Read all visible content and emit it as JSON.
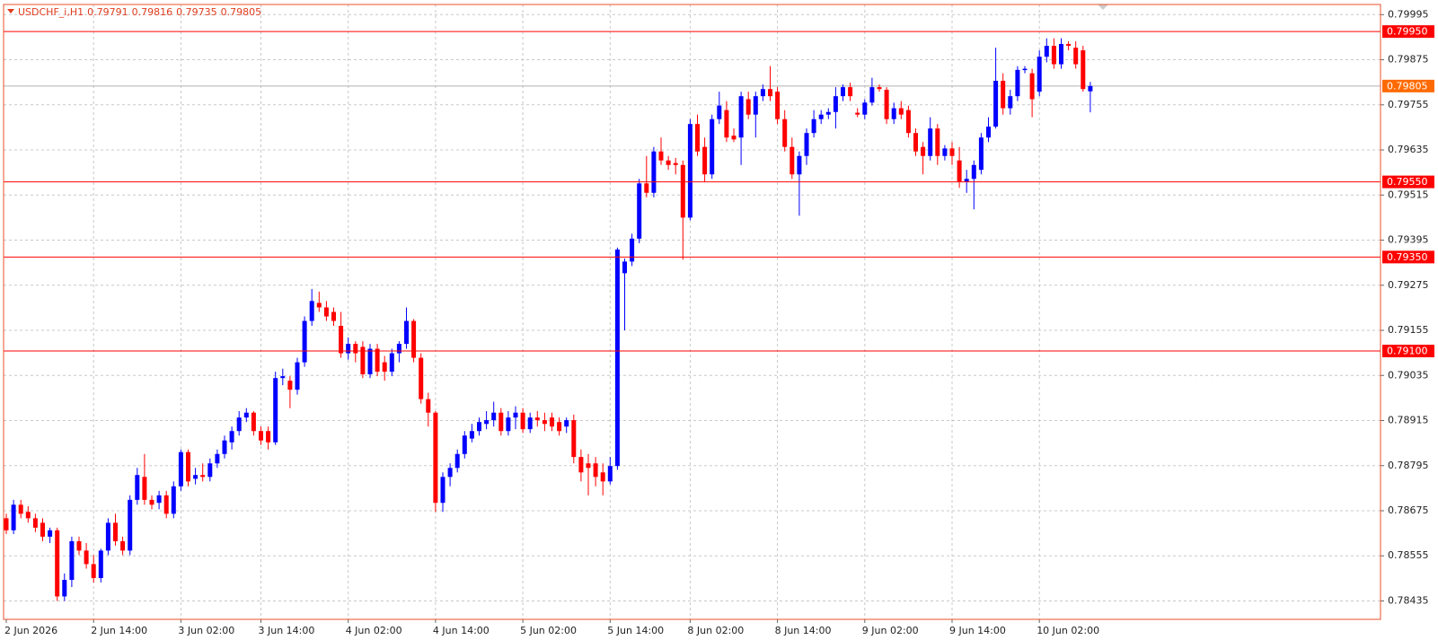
{
  "chart_data": {
    "type": "candlestick",
    "symbol": "USDCHF_i,H1",
    "categories": [
      "2 Jun 2026",
      null,
      null,
      null,
      null,
      null,
      null,
      null,
      null,
      null,
      null,
      null,
      "2 Jun 14:00",
      null,
      null,
      null,
      null,
      null,
      null,
      null,
      null,
      null,
      null,
      null,
      "3 Jun 02:00",
      null,
      null,
      null,
      null,
      null,
      null,
      null,
      null,
      null,
      null,
      "3 Jun 14:00",
      null,
      null,
      null,
      null,
      null,
      null,
      null,
      null,
      null,
      null,
      null,
      "4 Jun 02:00",
      null,
      null,
      null,
      null,
      null,
      null,
      null,
      null,
      null,
      null,
      null,
      "4 Jun 14:00",
      null,
      null,
      null,
      null,
      null,
      null,
      null,
      null,
      null,
      null,
      null,
      "5 Jun 02:00",
      null,
      null,
      null,
      null,
      null,
      null,
      null,
      null,
      null,
      null,
      null,
      "5 Jun 14:00",
      null,
      null,
      null,
      null,
      null,
      null,
      null,
      null,
      null,
      null,
      "8 Jun 02:00",
      null,
      null,
      null,
      null,
      null,
      null,
      null,
      null,
      null,
      null,
      null,
      "8 Jun 14:00",
      null,
      null,
      null,
      null,
      null,
      null,
      null,
      null,
      null,
      null,
      null,
      "9 Jun 02:00",
      null,
      null,
      null,
      null,
      null,
      null,
      null,
      null,
      null,
      null,
      null,
      "9 Jun 14:00",
      null,
      null,
      null,
      null,
      null,
      null,
      null,
      null,
      null,
      null,
      null,
      "10 Jun 02:00",
      null,
      null,
      null,
      null,
      null,
      null,
      null
    ],
    "open": [
      0.78655,
      0.78623,
      0.78691,
      0.78672,
      0.78655,
      0.78643,
      0.78606,
      0.78623,
      0.78447,
      0.78491,
      0.78594,
      0.78569,
      0.78533,
      0.78496,
      0.78569,
      0.78643,
      0.78594,
      0.78569,
      0.78704,
      0.78765,
      0.78704,
      0.78696,
      0.78716,
      0.78667,
      0.7874,
      0.78831,
      0.7876,
      0.7877,
      0.78765,
      0.78801,
      0.78826,
      0.78857,
      0.78887,
      0.78923,
      0.78936,
      0.78887,
      0.78887,
      0.78857,
      0.79028,
      0.79021,
      0.78997,
      0.7907,
      0.7918,
      0.79228,
      0.79216,
      0.79204,
      0.79167,
      0.79094,
      0.79119,
      0.79111,
      0.79038,
      0.79106,
      0.7907,
      0.79045,
      0.79094,
      0.79119,
      0.7918,
      0.79082,
      0.78972,
      0.78936,
      0.78696,
      0.78765,
      0.78789,
      0.78826,
      0.78867,
      0.78887,
      0.78906,
      0.78916,
      0.78936,
      0.78887,
      0.78923,
      0.78936,
      0.78892,
      0.78923,
      0.78916,
      0.78923,
      0.78911,
      0.78899,
      0.78916,
      0.78818,
      0.78801,
      0.78801,
      0.78777,
      0.78753,
      0.78794,
      0.79307,
      0.79338,
      0.79399,
      0.79546,
      0.79521,
      0.79631,
      0.79607,
      0.796,
      0.79595,
      0.79455,
      0.79704,
      0.79643,
      0.7957,
      0.79717,
      0.79741,
      0.79673,
      0.79668,
      0.7977,
      0.79729,
      0.79778,
      0.79797,
      0.7979,
      0.79717,
      0.79643,
      0.7957,
      0.79619,
      0.7968,
      0.79717,
      0.79729,
      0.79736,
      0.79778,
      0.79802,
      0.79734,
      0.79729,
      0.79761,
      0.79802,
      0.79795,
      0.79717,
      0.79746,
      0.79741,
      0.7968,
      0.79643,
      0.79619,
      0.79692,
      0.79619,
      0.79639,
      0.79607,
      0.79551,
      0.79558,
      0.79582,
      0.79668,
      0.79697,
      0.79819,
      0.79746,
      0.79778,
      0.79848,
      0.79839,
      0.7979,
      0.79883,
      0.79912,
      0.79863,
      0.79917,
      0.79907,
      0.799,
      0.79791
    ],
    "high": [
      0.78667,
      0.78704,
      0.78704,
      0.78687,
      0.78667,
      0.78655,
      0.7863,
      0.7863,
      0.78508,
      0.78606,
      0.78606,
      0.78589,
      0.78557,
      0.78574,
      0.78655,
      0.78667,
      0.78606,
      0.78716,
      0.78789,
      0.78826,
      0.78716,
      0.78728,
      0.78728,
      0.78753,
      0.78838,
      0.78838,
      0.78789,
      0.78801,
      0.78814,
      0.78838,
      0.78875,
      0.78899,
      0.7894,
      0.78948,
      0.7894,
      0.78899,
      0.78899,
      0.79045,
      0.79053,
      0.79033,
      0.79082,
      0.79192,
      0.79265,
      0.79258,
      0.79233,
      0.79216,
      0.79204,
      0.79136,
      0.79126,
      0.79126,
      0.79119,
      0.79119,
      0.79087,
      0.79106,
      0.79126,
      0.79216,
      0.79185,
      0.79094,
      0.78989,
      0.7894,
      0.78777,
      0.78801,
      0.78838,
      0.78887,
      0.78906,
      0.78923,
      0.7894,
      0.78965,
      0.78948,
      0.7894,
      0.78953,
      0.78948,
      0.78936,
      0.7894,
      0.78936,
      0.78936,
      0.78923,
      0.78923,
      0.78931,
      0.78838,
      0.78826,
      0.78818,
      0.78801,
      0.78818,
      0.79375,
      0.79346,
      0.79412,
      0.79558,
      0.79619,
      0.79643,
      0.79668,
      0.79619,
      0.79614,
      0.79607,
      0.79717,
      0.79729,
      0.79668,
      0.79729,
      0.7979,
      0.79765,
      0.79692,
      0.7979,
      0.7979,
      0.7979,
      0.79809,
      0.79858,
      0.79802,
      0.79741,
      0.79668,
      0.79631,
      0.79692,
      0.79741,
      0.79741,
      0.79746,
      0.79802,
      0.79809,
      0.79814,
      0.79746,
      0.7977,
      0.79827,
      0.79809,
      0.79802,
      0.79761,
      0.79765,
      0.79753,
      0.79692,
      0.79656,
      0.79722,
      0.79704,
      0.79648,
      0.79656,
      0.79643,
      0.79582,
      0.79607,
      0.7968,
      0.79722,
      0.79907,
      0.79839,
      0.79795,
      0.79858,
      0.79858,
      0.79851,
      0.799,
      0.79932,
      0.79932,
      0.79932,
      0.79924,
      0.79924,
      0.79912,
      0.79816
    ],
    "low": [
      0.78613,
      0.78613,
      0.78655,
      0.78643,
      0.78618,
      0.78594,
      0.78589,
      0.78435,
      0.78435,
      0.78472,
      0.78557,
      0.78521,
      0.78484,
      0.78484,
      0.78557,
      0.78582,
      0.78557,
      0.78557,
      0.78691,
      0.78691,
      0.78679,
      0.78679,
      0.78655,
      0.78655,
      0.78728,
      0.7874,
      0.78745,
      0.78753,
      0.78753,
      0.78789,
      0.78814,
      0.78838,
      0.78875,
      0.78911,
      0.78875,
      0.7885,
      0.78838,
      0.7885,
      0.79009,
      0.78948,
      0.78984,
      0.79058,
      0.79167,
      0.79204,
      0.7918,
      0.79167,
      0.79082,
      0.79077,
      0.7907,
      0.79028,
      0.79028,
      0.79033,
      0.79021,
      0.79033,
      0.7907,
      0.79106,
      0.7907,
      0.7896,
      0.78899,
      0.78672,
      0.78672,
      0.7874,
      0.78777,
      0.78814,
      0.78857,
      0.78875,
      0.78892,
      0.78899,
      0.78875,
      0.78875,
      0.78892,
      0.78882,
      0.78882,
      0.78899,
      0.78887,
      0.78887,
      0.78875,
      0.78882,
      0.78801,
      0.78753,
      0.78716,
      0.7874,
      0.78716,
      0.78745,
      0.78784,
      0.79155,
      0.79326,
      0.79387,
      0.79509,
      0.79509,
      0.79595,
      0.79582,
      0.7957,
      0.79343,
      0.79448,
      0.79619,
      0.79551,
      0.79558,
      0.79704,
      0.79656,
      0.79656,
      0.79595,
      0.79717,
      0.79668,
      0.79765,
      0.79765,
      0.79704,
      0.79631,
      0.79558,
      0.7946,
      0.79595,
      0.79668,
      0.79704,
      0.79717,
      0.79692,
      0.79765,
      0.79765,
      0.79722,
      0.79717,
      0.79753,
      0.7979,
      0.79704,
      0.79704,
      0.79717,
      0.79668,
      0.79619,
      0.7957,
      0.79607,
      0.79595,
      0.79607,
      0.79595,
      0.79534,
      0.79521,
      0.79477,
      0.7957,
      0.79656,
      0.79692,
      0.79729,
      0.79729,
      0.79765,
      0.79839,
      0.79722,
      0.79778,
      0.79868,
      0.79851,
      0.79851,
      0.799,
      0.79851,
      0.7979,
      0.79735
    ],
    "close": [
      0.78623,
      0.78691,
      0.78667,
      0.78655,
      0.7863,
      0.78606,
      0.78623,
      0.78447,
      0.78491,
      0.78594,
      0.78569,
      0.78533,
      0.78496,
      0.78569,
      0.78643,
      0.78594,
      0.78569,
      0.78704,
      0.7877,
      0.78704,
      0.78691,
      0.78716,
      0.78667,
      0.7874,
      0.78831,
      0.78753,
      0.7877,
      0.78765,
      0.78801,
      0.78826,
      0.78862,
      0.78887,
      0.78923,
      0.78936,
      0.78887,
      0.78862,
      0.78857,
      0.79028,
      0.79033,
      0.78997,
      0.7907,
      0.7918,
      0.79233,
      0.79216,
      0.79192,
      0.7918,
      0.79094,
      0.79119,
      0.79094,
      0.79038,
      0.79106,
      0.79045,
      0.79045,
      0.79094,
      0.79119,
      0.7918,
      0.79082,
      0.78972,
      0.78936,
      0.78696,
      0.78765,
      0.78789,
      0.78826,
      0.78875,
      0.78887,
      0.78911,
      0.78916,
      0.78936,
      0.78887,
      0.78923,
      0.78936,
      0.78892,
      0.78923,
      0.78916,
      0.78906,
      0.78899,
      0.78887,
      0.78916,
      0.78818,
      0.78777,
      0.78789,
      0.78765,
      0.78753,
      0.78794,
      0.7937,
      0.79338,
      0.79399,
      0.79546,
      0.79521,
      0.79631,
      0.79607,
      0.79595,
      0.79595,
      0.79455,
      0.79704,
      0.79631,
      0.7957,
      0.79717,
      0.79753,
      0.79668,
      0.79663,
      0.79778,
      0.79729,
      0.79778,
      0.79797,
      0.79778,
      0.79717,
      0.79643,
      0.7957,
      0.79619,
      0.7968,
      0.79717,
      0.79729,
      0.79736,
      0.79778,
      0.79802,
      0.79778,
      0.79729,
      0.79761,
      0.79802,
      0.79797,
      0.79717,
      0.79746,
      0.79729,
      0.7968,
      0.79631,
      0.79619,
      0.79692,
      0.79619,
      0.79639,
      0.79619,
      0.79551,
      0.79558,
      0.79595,
      0.79668,
      0.79697,
      0.79819,
      0.79746,
      0.79778,
      0.79848,
      0.79851,
      0.7977,
      0.79883,
      0.79912,
      0.79863,
      0.79917,
      0.79912,
      0.79863,
      0.79797,
      0.79805
    ],
    "up_color": "#0000ff",
    "down_color": "#ff0000",
    "ylim": [
      0.78386,
      0.80022
    ],
    "yticks": [
      0.79995,
      0.79875,
      0.79755,
      0.79635,
      0.79515,
      0.79395,
      0.79275,
      0.79155,
      0.79035,
      0.78915,
      0.78795,
      0.78675,
      0.78555,
      0.78435
    ],
    "grid": true,
    "levels": [
      {
        "value": 0.7995,
        "label": "0.79950"
      },
      {
        "value": 0.7955,
        "label": "0.79550"
      },
      {
        "value": 0.7935,
        "label": "0.79350"
      },
      {
        "value": 0.791,
        "label": "0.79100"
      }
    ],
    "level_color": "#ff0000",
    "current_price_color": "#ff6a00"
  }
}
